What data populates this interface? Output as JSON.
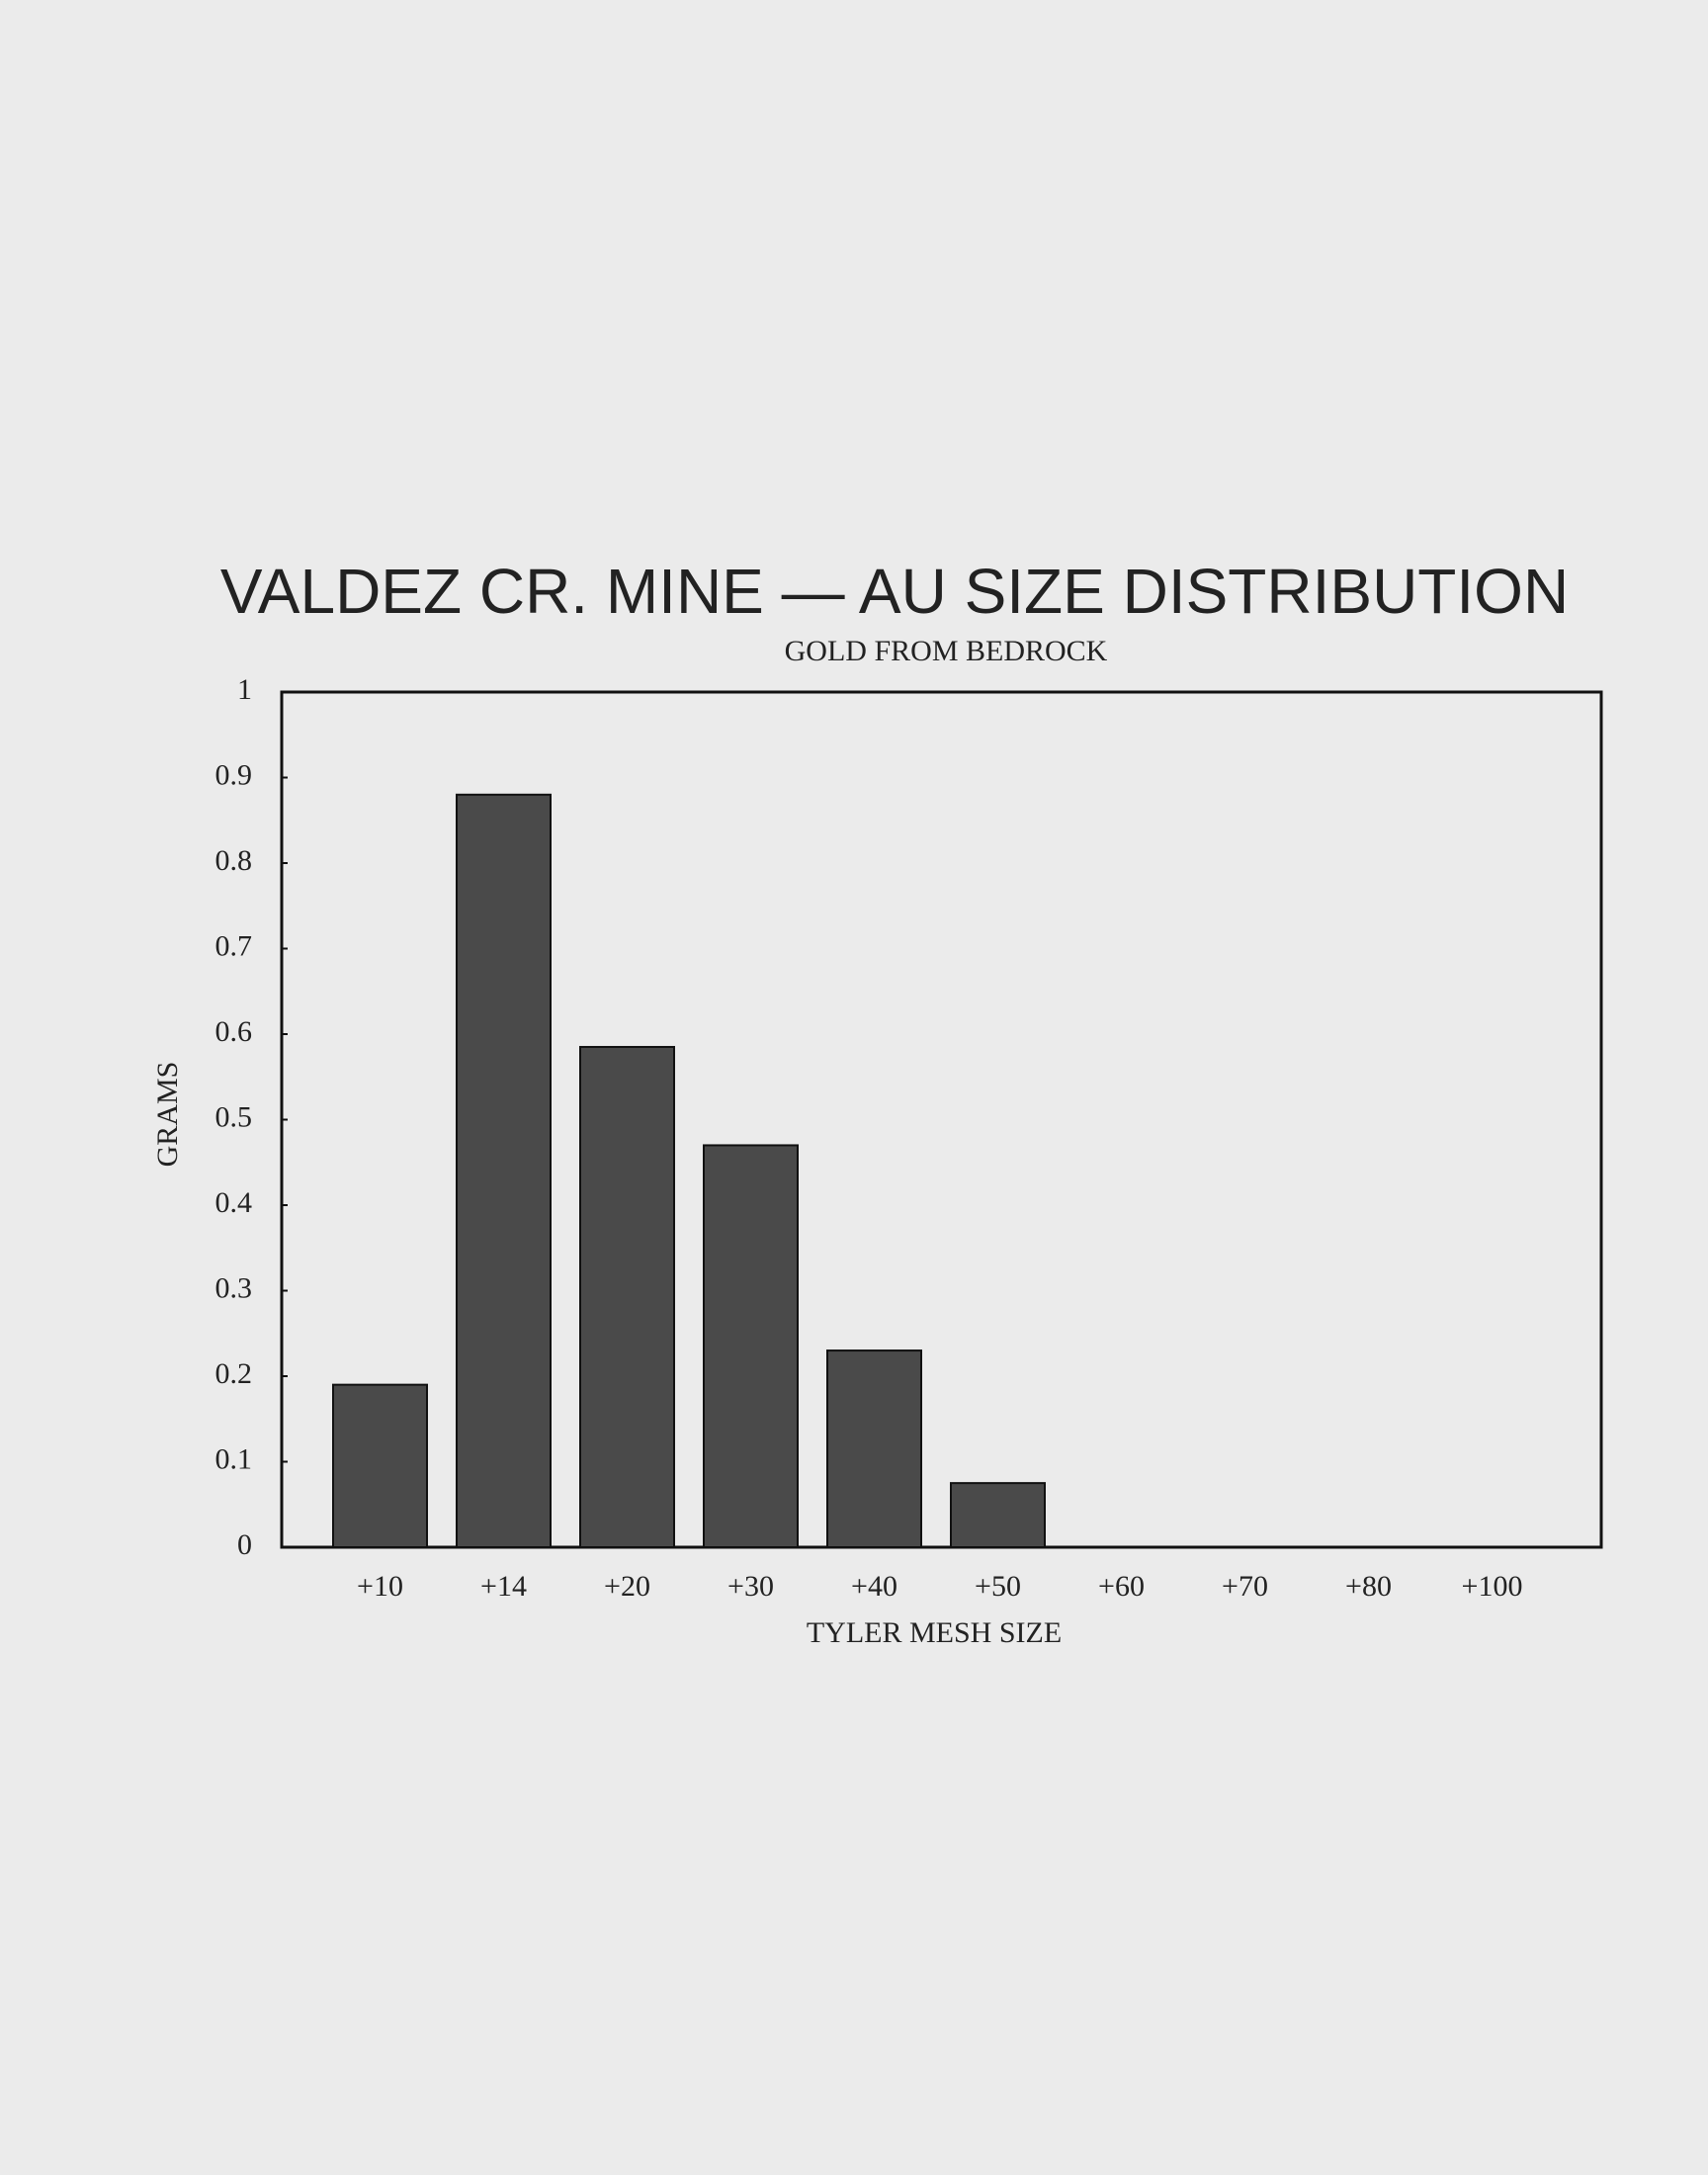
{
  "chart_data": {
    "type": "bar",
    "title": "VALDEZ CR. MINE — AU SIZE DISTRIBUTION",
    "subtitle": "GOLD FROM BEDROCK",
    "x_label": "TYLER MESH SIZE",
    "y_label": "GRAMS",
    "categories": [
      "+10",
      "+14",
      "+20",
      "+30",
      "+40",
      "+50",
      "+60",
      "+70",
      "+80",
      "+100"
    ],
    "values": [
      0.19,
      0.88,
      0.585,
      0.47,
      0.23,
      0.075,
      0,
      0,
      0,
      0
    ],
    "color": "#4a4a4a",
    "ylim": [
      0,
      1
    ],
    "yticks": [
      0,
      0.1,
      0.2,
      0.3,
      0.4,
      0.5,
      0.6,
      0.7,
      0.8,
      0.9,
      1
    ],
    "grid": false
  }
}
